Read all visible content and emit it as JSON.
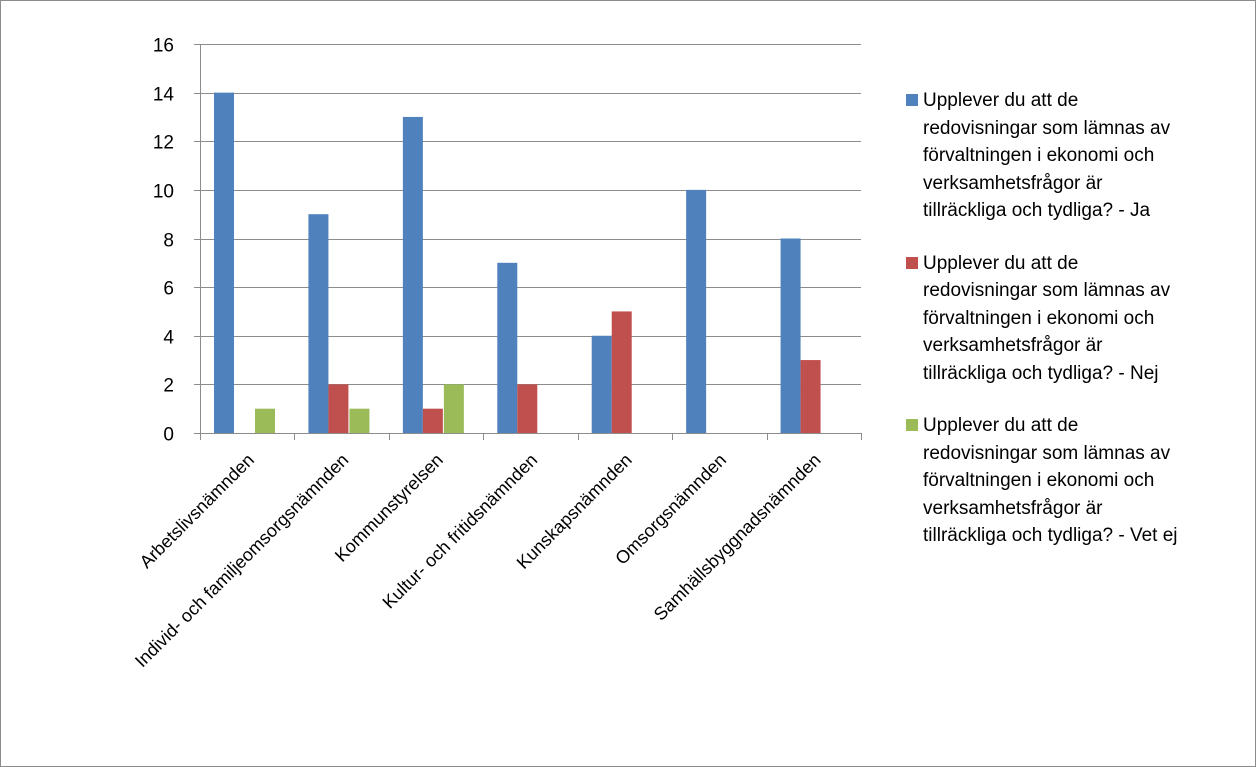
{
  "chart_data": {
    "type": "bar",
    "title": "",
    "xlabel": "",
    "ylabel": "",
    "ylim": [
      0,
      16
    ],
    "yticks": [
      0,
      2,
      4,
      6,
      8,
      10,
      12,
      14,
      16
    ],
    "grid": true,
    "legend_position": "right",
    "categories": [
      "Arbetslivsnämnden",
      "Individ- och familjeomsorgsnämnden",
      "Kommunstyrelsen",
      "Kultur- och fritidsnämnden",
      "Kunskapsnämnden",
      "Omsorgsnämnden",
      "Samhällsbyggnadsnämnden"
    ],
    "series": [
      {
        "name": "Upplever du att de redovisningar som lämnas av förvaltningen i ekonomi och verksamhetsfrågor är tillräckliga och tydliga? - Ja",
        "color": "#4f81bd",
        "values": [
          14,
          9,
          13,
          7,
          4,
          10,
          8
        ]
      },
      {
        "name": "Upplever du att de redovisningar som lämnas av förvaltningen i ekonomi och verksamhetsfrågor är tillräckliga och tydliga? - Nej",
        "color": "#c0504d",
        "values": [
          0,
          2,
          1,
          2,
          5,
          0,
          3
        ]
      },
      {
        "name": "Upplever du att de redovisningar som lämnas av förvaltningen i ekonomi och verksamhetsfrågor är tillräckliga och tydliga? - Vet ej",
        "color": "#9bbb59",
        "values": [
          1,
          1,
          2,
          0,
          0,
          0,
          0
        ]
      }
    ]
  },
  "legend": {
    "items": [
      {
        "lines": [
          "Upplever du att de",
          "redovisningar som lämnas av",
          "förvaltningen i ekonomi och",
          "verksamhetsfrågor är",
          "tillräckliga och tydliga? - Ja"
        ],
        "color": "#4f81bd"
      },
      {
        "lines": [
          "Upplever du att de",
          "redovisningar som lämnas av",
          "förvaltningen i ekonomi och",
          "verksamhetsfrågor är",
          "tillräckliga och tydliga? - Nej"
        ],
        "color": "#c0504d"
      },
      {
        "lines": [
          "Upplever du att de",
          "redovisningar som lämnas av",
          "förvaltningen i ekonomi och",
          "verksamhetsfrågor är",
          "tillräckliga och tydliga? - Vet ej"
        ],
        "color": "#9bbb59"
      }
    ]
  }
}
